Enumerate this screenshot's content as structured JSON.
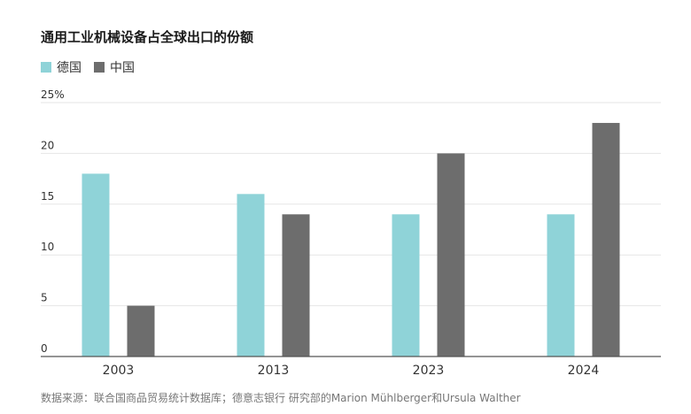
{
  "title": "通用工业机械设备占全球出口的份额",
  "legend": [
    {
      "label": "德国",
      "color": "#8fd3d8"
    },
    {
      "label": "中国",
      "color": "#6d6d6d"
    }
  ],
  "source": "数据来源：联合国商品贸易统计数据库；德意志银行 研究部的Marion Mühlberger和Ursula Walther",
  "chart_data": {
    "type": "bar",
    "title": "通用工业机械设备占全球出口的份额",
    "categories": [
      "2003",
      "2013",
      "2023",
      "2024"
    ],
    "series": [
      {
        "name": "德国",
        "color": "#8fd3d8",
        "values": [
          18,
          16,
          14,
          14
        ]
      },
      {
        "name": "中国",
        "color": "#6d6d6d",
        "values": [
          5,
          14,
          20,
          23
        ]
      }
    ],
    "ylim": [
      0,
      25
    ],
    "yticks": [
      0,
      5,
      10,
      15,
      20,
      25
    ],
    "ytick_labels": [
      "0",
      "5",
      "10",
      "15",
      "20",
      "25%"
    ],
    "grid": true,
    "legend_position": "top-left"
  }
}
